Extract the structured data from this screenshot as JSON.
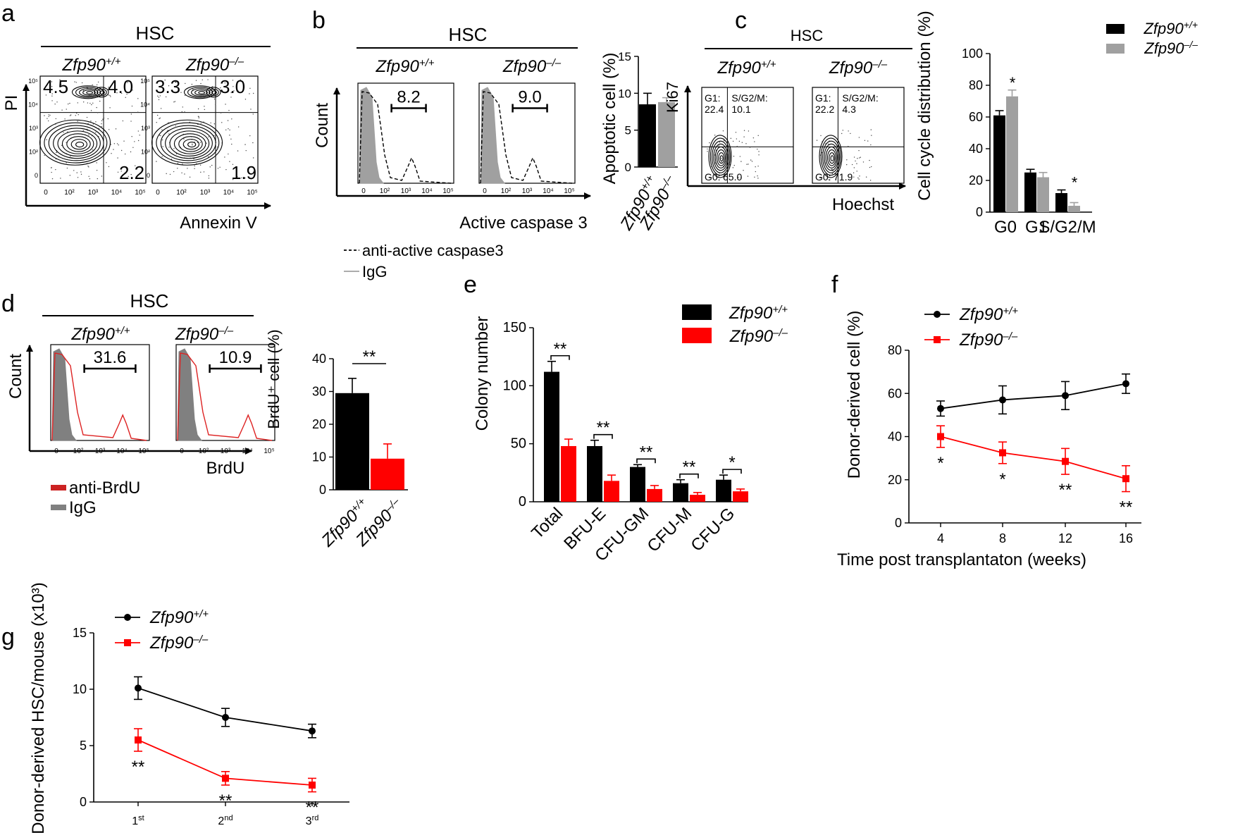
{
  "panels": [
    {
      "letter": "a"
    },
    {
      "letter": "b"
    },
    {
      "letter": "c"
    },
    {
      "letter": "d"
    },
    {
      "letter": "e"
    },
    {
      "letter": "f"
    },
    {
      "letter": "g"
    }
  ],
  "genotype": {
    "base": "Zfp90",
    "wt": "+/+",
    "ko": "–/–"
  },
  "hsc": "HSC",
  "flow_ticks": [
    "0",
    "10²",
    "10³",
    "10⁴",
    "10⁵"
  ],
  "colors": {
    "black": "#000000",
    "gray": "#a0a0a0",
    "red": "#ff0000",
    "darkred": "#cc2222"
  },
  "chart_data": [
    {
      "id": "a",
      "type": "contour-plot",
      "xlabel": "Annexin V",
      "ylabel": "PI",
      "plots": [
        {
          "genotype": "wt",
          "quadrants": {
            "ul": "4.5",
            "ur": "4.0",
            "lr": "2.2"
          }
        },
        {
          "genotype": "ko",
          "quadrants": {
            "ul": "3.3",
            "ur": "3.0",
            "lr": "1.9"
          }
        }
      ]
    },
    {
      "id": "b-hist",
      "type": "histogram",
      "xlabel": "Active caspase 3",
      "ylabel": "Count",
      "plots": [
        {
          "genotype": "wt",
          "gate": "8.2"
        },
        {
          "genotype": "ko",
          "gate": "9.0"
        }
      ],
      "legend": [
        {
          "name": "anti-active caspase3"
        },
        {
          "name": "IgG"
        }
      ]
    },
    {
      "id": "b-bar",
      "type": "bar",
      "ylabel": "Apoptotic cell (%)",
      "ylim": [
        0,
        15
      ],
      "yticks": [
        0,
        5,
        10,
        15
      ],
      "categories": [
        "wt",
        "ko"
      ],
      "values": [
        8.5,
        8.8
      ],
      "errors": [
        1.5,
        0.6
      ],
      "colors": [
        "#000000",
        "#a0a0a0"
      ]
    },
    {
      "id": "c-contour",
      "type": "contour-plot",
      "xlabel": "Hoechst",
      "ylabel": "Ki67",
      "plots": [
        {
          "genotype": "wt",
          "g1": "22.4",
          "sg2m": "10.1",
          "g0": "65.0"
        },
        {
          "genotype": "ko",
          "g1": "22.2",
          "sg2m": "4.3",
          "g0": "71.9"
        }
      ],
      "labels": {
        "g1": "G1:",
        "sg2m": "S/G2/M:",
        "g0": "G0:"
      }
    },
    {
      "id": "c-bar",
      "type": "bar",
      "ylabel": "Cell cycle distribution (%)",
      "ylim": [
        0,
        100
      ],
      "yticks": [
        0,
        20,
        40,
        60,
        80,
        100
      ],
      "categories": [
        "G0",
        "G1",
        "S/G2/M"
      ],
      "series": [
        {
          "name": "wt",
          "values": [
            61,
            25,
            12
          ],
          "errors": [
            3,
            2,
            2
          ],
          "color": "#000000"
        },
        {
          "name": "ko",
          "values": [
            73,
            22,
            4
          ],
          "errors": [
            4,
            3,
            2
          ],
          "color": "#a0a0a0"
        }
      ],
      "annotations": [
        "*",
        "",
        "*"
      ]
    },
    {
      "id": "d-hist",
      "type": "histogram",
      "xlabel": "BrdU",
      "ylabel": "Count",
      "plots": [
        {
          "genotype": "wt",
          "gate": "31.6"
        },
        {
          "genotype": "ko",
          "gate": "10.9"
        }
      ],
      "legend": [
        {
          "name": "anti-BrdU"
        },
        {
          "name": "IgG"
        }
      ]
    },
    {
      "id": "d-bar",
      "type": "bar",
      "ylabel": "BrdU⁺ cell (%)",
      "ylim": [
        0,
        40
      ],
      "yticks": [
        0,
        10,
        20,
        30,
        40
      ],
      "categories": [
        "wt",
        "ko"
      ],
      "values": [
        29.5,
        9.5
      ],
      "errors": [
        4.5,
        4.5
      ],
      "colors": [
        "#000000",
        "#ff0000"
      ],
      "sig": "**"
    },
    {
      "id": "e",
      "type": "bar",
      "ylabel": "Colony number",
      "ylim": [
        0,
        150
      ],
      "yticks": [
        0,
        50,
        100,
        150
      ],
      "categories": [
        "Total",
        "BFU-E",
        "CFU-GM",
        "CFU-M",
        "CFU-G"
      ],
      "series": [
        {
          "name": "wt",
          "values": [
            112,
            48,
            30,
            16,
            19
          ],
          "errors": [
            9,
            5,
            2,
            3,
            4
          ],
          "color": "#000000"
        },
        {
          "name": "ko",
          "values": [
            48,
            18,
            11,
            6,
            9
          ],
          "errors": [
            6,
            5,
            3,
            2,
            2
          ],
          "color": "#ff0000"
        }
      ],
      "annotations": [
        "**",
        "**",
        "**",
        "**",
        "*"
      ]
    },
    {
      "id": "f",
      "type": "line",
      "xlabel": "Time post transplantaton (weeks)",
      "ylabel": "Donor-derived cell (%)",
      "x": [
        4,
        8,
        12,
        16
      ],
      "xticks": [
        "4",
        "8",
        "12",
        "16"
      ],
      "ylim": [
        0,
        80
      ],
      "yticks": [
        0,
        20,
        40,
        60,
        80
      ],
      "series": [
        {
          "name": "wt",
          "values": [
            53,
            57,
            59,
            64.5
          ],
          "errors": [
            3.5,
            6.5,
            6.5,
            4.5
          ],
          "color": "#000000",
          "marker": "circle"
        },
        {
          "name": "ko",
          "values": [
            40,
            32.5,
            28.5,
            20.5
          ],
          "errors": [
            5,
            5,
            6,
            6
          ],
          "color": "#ff0000",
          "marker": "square"
        }
      ],
      "annotations": [
        "*",
        "*",
        "**",
        "**"
      ]
    },
    {
      "id": "g",
      "type": "line",
      "ylabel": "Donor-derived HSC/mouse (x10³)",
      "xticks": [
        {
          "n": "1",
          "s": "st"
        },
        {
          "n": "2",
          "s": "nd"
        },
        {
          "n": "3",
          "s": "rd"
        }
      ],
      "ylim": [
        0,
        15
      ],
      "yticks": [
        0,
        5,
        10,
        15
      ],
      "series": [
        {
          "name": "wt",
          "values": [
            10.1,
            7.5,
            6.3
          ],
          "errors": [
            1.0,
            0.8,
            0.6
          ],
          "color": "#000000",
          "marker": "circle"
        },
        {
          "name": "ko",
          "values": [
            5.5,
            2.1,
            1.5
          ],
          "errors": [
            1.0,
            0.6,
            0.6
          ],
          "color": "#ff0000",
          "marker": "square"
        }
      ],
      "annotations": [
        "**",
        "**",
        "**"
      ]
    }
  ]
}
